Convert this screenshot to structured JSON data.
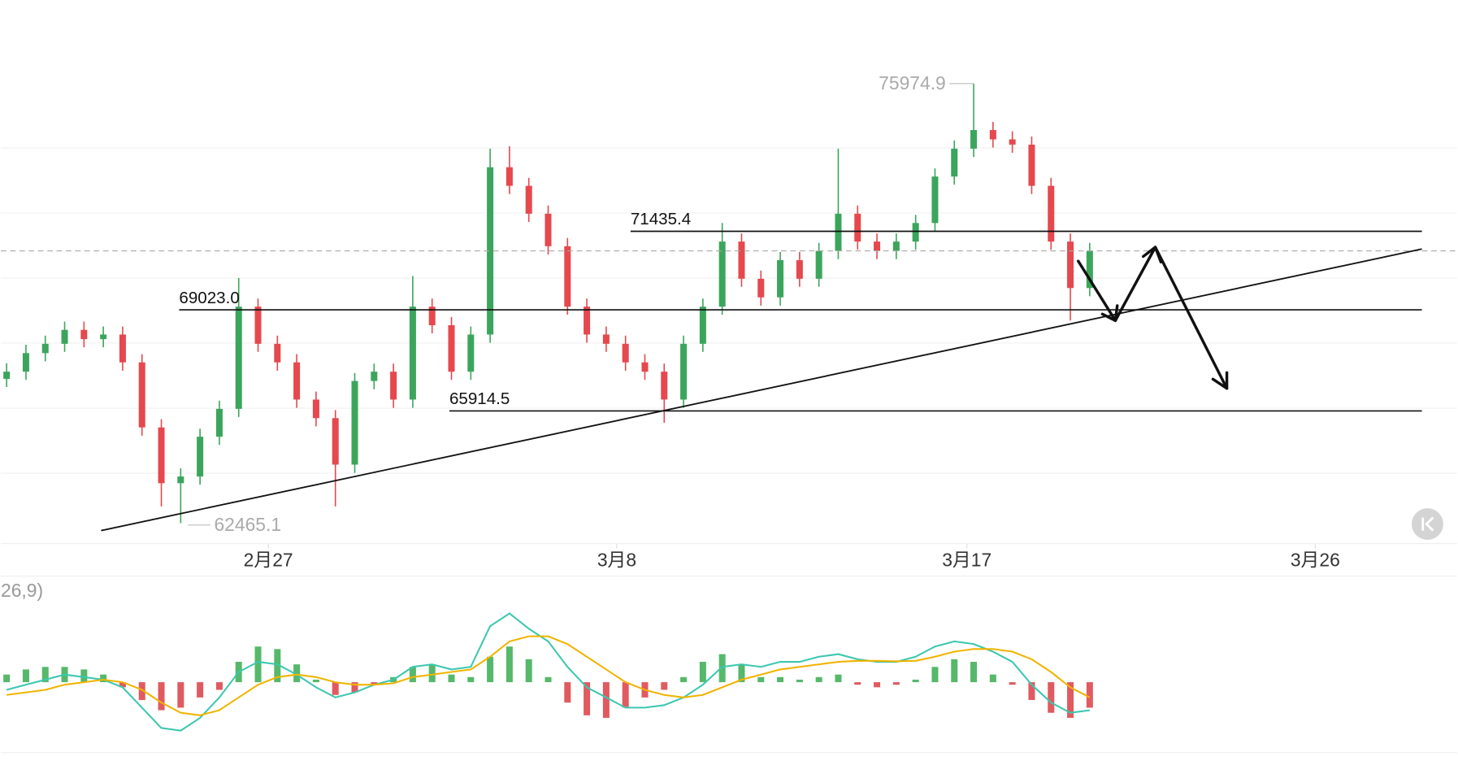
{
  "chart_data": {
    "type": "candlestick",
    "up_color": "#3ba55c",
    "down_color": "#e5484d",
    "grid": true,
    "xlim": [
      -0.3,
      75
    ],
    "xticks": [
      {
        "value": 13.53,
        "label": "2月27"
      },
      {
        "value": 31.55,
        "label": "3月8"
      },
      {
        "value": 49.65,
        "label": "3月17"
      },
      {
        "value": 67.66,
        "label": "3月26"
      }
    ],
    "ylim": [
      61838,
      78545
    ],
    "yticks": [
      64000,
      66000,
      68000,
      70000,
      72000,
      74000
    ],
    "candles": [
      [
        66900,
        67380,
        66650,
        67121
      ],
      [
        67121,
        67950,
        66870,
        67692
      ],
      [
        67692,
        68230,
        67440,
        67978
      ],
      [
        67978,
        68660,
        67730,
        68406
      ],
      [
        68406,
        68660,
        67870,
        68121
      ],
      [
        68121,
        68510,
        67870,
        68263
      ],
      [
        68263,
        68510,
        67150,
        67407
      ],
      [
        67407,
        67660,
        65150,
        65408
      ],
      [
        65408,
        65660,
        62980,
        63694
      ],
      [
        63694,
        64150,
        62465.1,
        63900
      ],
      [
        63900,
        65370,
        63650,
        65122
      ],
      [
        65122,
        66230,
        64870,
        65979
      ],
      [
        65979,
        70000,
        65730,
        69120
      ],
      [
        69120,
        69370,
        67730,
        67978
      ],
      [
        67978,
        68230,
        67150,
        67407
      ],
      [
        67407,
        67660,
        66010,
        66264
      ],
      [
        66264,
        66510,
        65440,
        65693
      ],
      [
        65693,
        65940,
        62980,
        64265
      ],
      [
        64265,
        67080,
        64010,
        66835
      ],
      [
        66835,
        67370,
        66580,
        67121
      ],
      [
        67121,
        67370,
        66010,
        66264
      ],
      [
        66264,
        70060,
        66010,
        69120
      ],
      [
        69120,
        69370,
        68300,
        68549
      ],
      [
        68549,
        68800,
        66870,
        67121
      ],
      [
        67121,
        68510,
        66870,
        68263
      ],
      [
        68263,
        73976,
        68010,
        73405
      ],
      [
        73405,
        74050,
        72580,
        72833
      ],
      [
        72833,
        73080,
        71720,
        71976
      ],
      [
        71976,
        72230,
        70720,
        70977
      ],
      [
        70977,
        71230,
        68870,
        69120
      ],
      [
        69120,
        69370,
        68010,
        68263
      ],
      [
        68263,
        68510,
        67730,
        67978
      ],
      [
        67978,
        68230,
        67150,
        67407
      ],
      [
        67407,
        67660,
        66870,
        67121
      ],
      [
        67121,
        67370,
        65550,
        66264
      ],
      [
        66264,
        68230,
        66010,
        67978
      ],
      [
        67978,
        69370,
        67730,
        69120
      ],
      [
        69120,
        71691,
        68870,
        71120
      ],
      [
        71120,
        71370,
        69730,
        69977
      ],
      [
        69977,
        70230,
        69150,
        69406
      ],
      [
        69406,
        70800,
        69150,
        70548
      ],
      [
        70548,
        70800,
        69730,
        69977
      ],
      [
        69977,
        71080,
        69730,
        70834
      ],
      [
        70834,
        73976,
        70580,
        71976
      ],
      [
        71976,
        72230,
        70870,
        71120
      ],
      [
        71120,
        71370,
        70580,
        70834
      ],
      [
        70834,
        71370,
        70580,
        71120
      ],
      [
        71120,
        71940,
        70870,
        71691
      ],
      [
        71691,
        73370,
        71440,
        73119
      ],
      [
        73119,
        74230,
        72870,
        73976
      ],
      [
        73976,
        75974.9,
        73720,
        74547
      ],
      [
        74547,
        74800,
        74010,
        74261
      ],
      [
        74261,
        74510,
        73850,
        74100
      ],
      [
        74100,
        74350,
        72580,
        72833
      ],
      [
        72833,
        73080,
        70870,
        71120
      ],
      [
        71120,
        71370,
        68692,
        69692
      ],
      [
        69692,
        71080,
        69440,
        70834
      ]
    ],
    "levels": [
      71435.4,
      {
        "value": 69023,
        "label": "69023.0"
      },
      65914.5
    ],
    "macd": {
      "label": "26,9)",
      "ylim": [
        -1200,
        1900
      ],
      "hist": [
        150,
        250,
        300,
        300,
        250,
        150,
        -100,
        -350,
        -550,
        -500,
        -300,
        -150,
        400,
        700,
        650,
        350,
        50,
        -250,
        -200,
        -50,
        100,
        300,
        350,
        150,
        100,
        500,
        700,
        450,
        100,
        -400,
        -650,
        -700,
        -500,
        -300,
        -150,
        100,
        400,
        550,
        350,
        100,
        100,
        50,
        100,
        150,
        -50,
        -100,
        -50,
        50,
        300,
        450,
        400,
        150,
        -50,
        -350,
        -600,
        -700,
        -500
      ],
      "dif": {
        "color": "#3cc7b0",
        "values": [
          -150,
          -50,
          50,
          150,
          100,
          50,
          -100,
          -500,
          -900,
          -950,
          -700,
          -300,
          200,
          400,
          350,
          150,
          -100,
          -300,
          -200,
          -50,
          50,
          300,
          350,
          250,
          300,
          1100,
          1350,
          1050,
          800,
          300,
          -100,
          -300,
          -500,
          -500,
          -450,
          -300,
          -50,
          300,
          350,
          300,
          400,
          400,
          500,
          550,
          450,
          400,
          400,
          500,
          700,
          800,
          750,
          600,
          400,
          -50,
          -400,
          -600,
          -550
        ]
      },
      "dea": {
        "color": "#f0b400",
        "values": [
          -250,
          -200,
          -150,
          -50,
          0,
          50,
          0,
          -150,
          -400,
          -600,
          -650,
          -550,
          -300,
          -50,
          100,
          150,
          100,
          0,
          -50,
          -50,
          -20,
          100,
          150,
          200,
          250,
          500,
          800,
          900,
          900,
          750,
          500,
          250,
          0,
          -150,
          -250,
          -300,
          -250,
          -100,
          50,
          150,
          250,
          300,
          350,
          400,
          420,
          420,
          410,
          420,
          500,
          600,
          650,
          650,
          600,
          450,
          200,
          -100,
          -300
        ]
      }
    }
  }
}
